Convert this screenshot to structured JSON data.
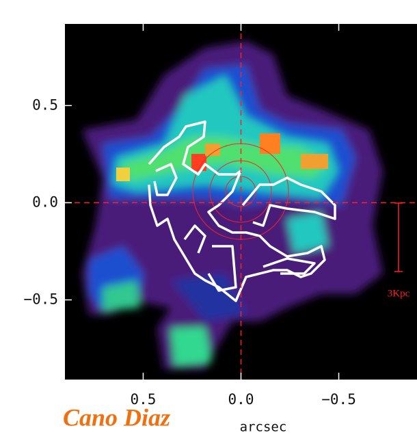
{
  "chart_data": {
    "type": "image",
    "xlabel": "arcsec",
    "xlim": [
      0.9,
      -0.9
    ],
    "ylim": [
      -0.91,
      0.92
    ],
    "xticks": [
      0.5,
      {
        "value": 0,
        "label": "0.0"
      },
      {
        "value": -0.5,
        "label": "−0.5"
      }
    ],
    "yticks": [
      0.5,
      {
        "value": 0,
        "label": "0.0"
      },
      {
        "value": -0.5,
        "label": "−0.5"
      }
    ],
    "crosshair": true,
    "crosshair_color": "#ff2020",
    "scale_label": "3Kpc",
    "credit": "Cano Diaz"
  }
}
